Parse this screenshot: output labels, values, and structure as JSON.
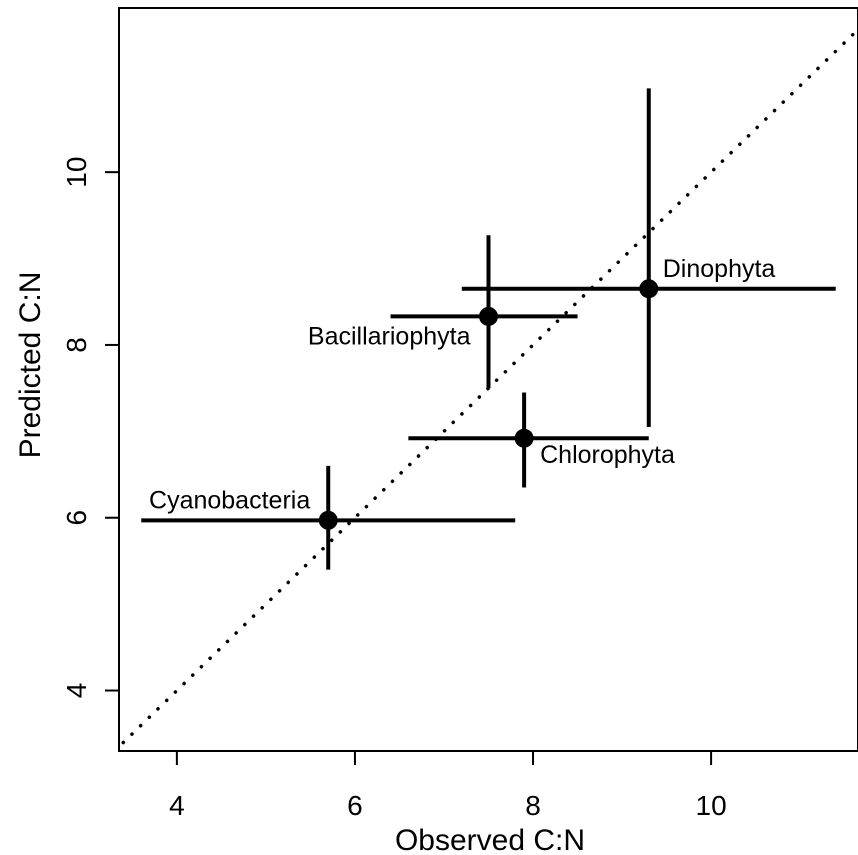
{
  "chart_data": {
    "type": "scatter",
    "title": "",
    "xlabel": "Observed C:N",
    "ylabel": "Predicted C:N",
    "xlim": [
      3.35,
      11.65
    ],
    "ylim": [
      3.3,
      11.9
    ],
    "xticks": [
      4,
      6,
      8,
      10
    ],
    "yticks": [
      4,
      6,
      8,
      10
    ],
    "grid": false,
    "reference_line": {
      "type": "1:1",
      "style": "dotted"
    },
    "points": [
      {
        "label": "Cyanobacteria",
        "x": 5.7,
        "y": 5.97,
        "x_err": [
          3.6,
          7.8
        ],
        "y_err": [
          5.4,
          6.6
        ],
        "label_pos": "above-left"
      },
      {
        "label": "Bacillariophyta",
        "x": 7.5,
        "y": 8.33,
        "x_err": [
          6.4,
          8.5
        ],
        "y_err": [
          7.5,
          9.27
        ],
        "label_pos": "below-left"
      },
      {
        "label": "Chlorophyta",
        "x": 7.9,
        "y": 6.92,
        "x_err": [
          6.6,
          9.3
        ],
        "y_err": [
          6.35,
          7.45
        ],
        "label_pos": "below-right"
      },
      {
        "label": "Dinophyta",
        "x": 9.3,
        "y": 8.65,
        "x_err": [
          7.2,
          11.4
        ],
        "y_err": [
          7.05,
          10.97
        ],
        "label_pos": "above-right"
      }
    ]
  }
}
